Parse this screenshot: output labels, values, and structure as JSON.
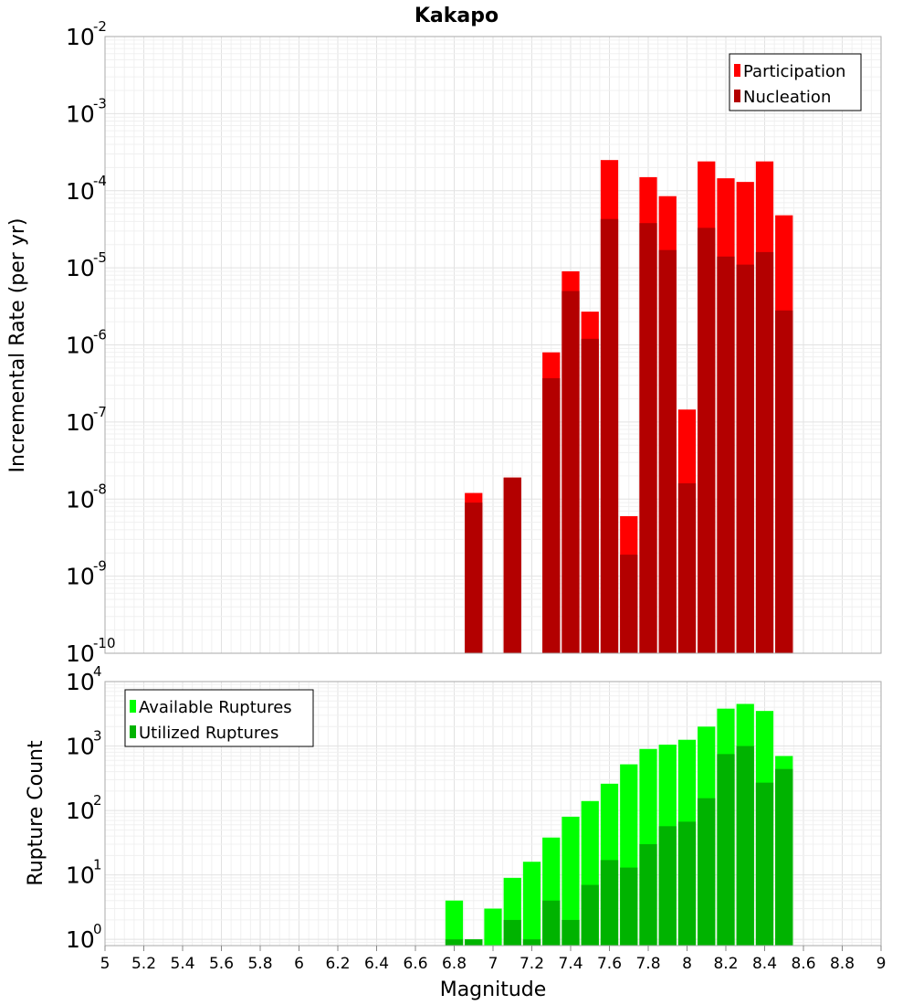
{
  "chart_data": [
    {
      "type": "bar",
      "title": "Kakapo",
      "xlabel": "",
      "ylabel": "Incremental Rate (per yr)",
      "y_scale": "log",
      "ylim": [
        1e-10,
        0.01
      ],
      "xlim": [
        5,
        9
      ],
      "y_tick_exponents": [
        "-10",
        "-9",
        "-8",
        "-7",
        "-6",
        "-5",
        "-4",
        "-3",
        "-2"
      ],
      "legend_position": "top-right",
      "x": [
        6.9,
        7.1,
        7.3,
        7.4,
        7.5,
        7.6,
        7.7,
        7.8,
        7.9,
        8.0,
        8.1,
        8.2,
        8.3,
        8.4,
        8.5
      ],
      "series": [
        {
          "name": "Participation",
          "color": "#ff0000",
          "values": [
            1.2e-08,
            1.9e-08,
            8e-07,
            9e-06,
            2.7e-06,
            0.00025,
            6e-09,
            0.00015,
            8.5e-05,
            1.45e-07,
            0.00024,
            0.000145,
            0.00013,
            0.00024,
            4.8e-05
          ]
        },
        {
          "name": "Nucleation",
          "color": "#b30000",
          "values": [
            9e-09,
            1.9e-08,
            3.7e-07,
            5e-06,
            1.2e-06,
            4.3e-05,
            1.9e-09,
            3.8e-05,
            1.7e-05,
            1.6e-08,
            3.3e-05,
            1.4e-05,
            1.1e-05,
            1.6e-05,
            2.8e-06
          ]
        }
      ]
    },
    {
      "type": "bar",
      "title": "",
      "xlabel": "Magnitude",
      "ylabel": "Rupture Count",
      "y_scale": "log",
      "ylim": [
        0.8,
        10000
      ],
      "xlim": [
        5,
        9
      ],
      "y_tick_exponents": [
        "0",
        "1",
        "2",
        "3",
        "4"
      ],
      "x_ticks": [
        "5",
        "5.2",
        "5.4",
        "5.6",
        "5.8",
        "6",
        "6.2",
        "6.4",
        "6.6",
        "6.8",
        "7",
        "7.2",
        "7.4",
        "7.6",
        "7.8",
        "8",
        "8.2",
        "8.4",
        "8.6",
        "8.8",
        "9"
      ],
      "legend_position": "top-left",
      "x": [
        6.8,
        6.9,
        7.0,
        7.1,
        7.2,
        7.3,
        7.4,
        7.5,
        7.6,
        7.7,
        7.8,
        7.9,
        8.0,
        8.1,
        8.2,
        8.3,
        8.4,
        8.5
      ],
      "series": [
        {
          "name": "Available Ruptures",
          "color": "#00ff00",
          "values": [
            4,
            1,
            3,
            9,
            16,
            38,
            80,
            140,
            260,
            520,
            900,
            1050,
            1250,
            2000,
            3800,
            4500,
            3500,
            700
          ]
        },
        {
          "name": "Utilized Ruptures",
          "color": "#00b300",
          "values": [
            1,
            1,
            0,
            2,
            1,
            4,
            2,
            7,
            17,
            13,
            30,
            57,
            67,
            155,
            750,
            1000,
            270,
            440
          ]
        }
      ]
    }
  ]
}
